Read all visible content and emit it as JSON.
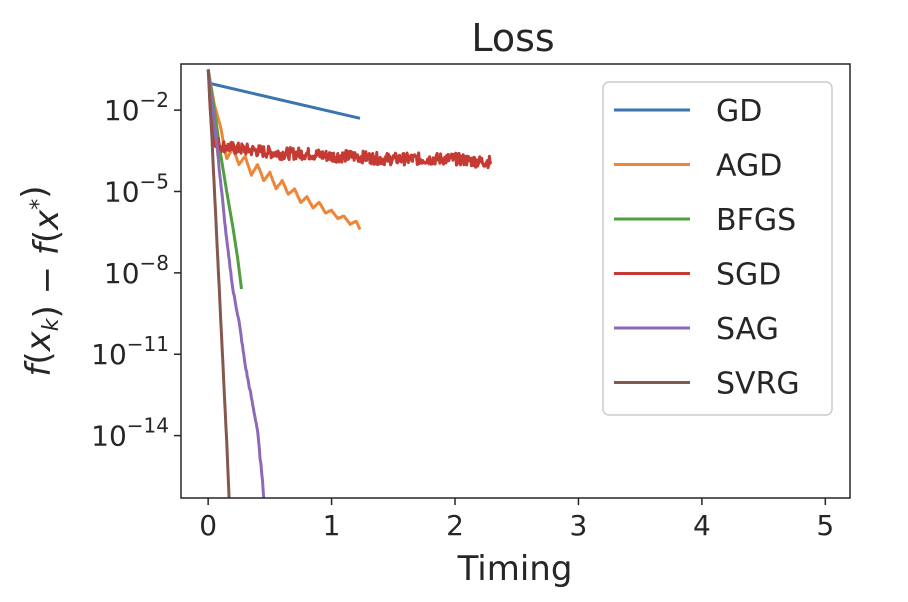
{
  "chart_data": {
    "type": "line",
    "title": "Loss",
    "xlabel": "Timing",
    "ylabel": "f(x_k) − f(x*)",
    "y_scale": "log",
    "xlim": [
      -0.22,
      5.2
    ],
    "ylim_log10": [
      -16.3,
      -0.3
    ],
    "x_ticks": [
      "0",
      "1",
      "2",
      "3",
      "4",
      "5"
    ],
    "y_ticks": [
      {
        "base": "10",
        "exp": "−2"
      },
      {
        "base": "10",
        "exp": "−5"
      },
      {
        "base": "10",
        "exp": "−8"
      },
      {
        "base": "10",
        "exp": "−11"
      },
      {
        "base": "10",
        "exp": "−14"
      }
    ],
    "grid": false,
    "legend_position": "top-right",
    "series": [
      {
        "name": "GD",
        "color": "#3a75b0",
        "x": [
          0.0,
          1.23
        ],
        "log10_y": [
          -1.0,
          -2.3
        ]
      },
      {
        "name": "AGD",
        "color": "#ef8536",
        "x": [
          0.0,
          0.05,
          0.1,
          0.15,
          0.2,
          0.25,
          0.3,
          0.35,
          0.4,
          0.45,
          0.5,
          0.55,
          0.6,
          0.65,
          0.7,
          0.75,
          0.8,
          0.85,
          0.9,
          0.95,
          1.0,
          1.05,
          1.1,
          1.15,
          1.2,
          1.23
        ],
        "log10_y": [
          -0.5,
          -1.8,
          -2.6,
          -3.8,
          -3.4,
          -4.0,
          -3.7,
          -4.4,
          -4.0,
          -4.6,
          -4.3,
          -4.9,
          -4.6,
          -5.1,
          -4.9,
          -5.4,
          -5.2,
          -5.6,
          -5.4,
          -5.8,
          -5.7,
          -6.0,
          -5.9,
          -6.2,
          -6.1,
          -6.4
        ]
      },
      {
        "name": "BFGS",
        "color": "#519e3e",
        "x": [
          0.0,
          0.03,
          0.06,
          0.1,
          0.15,
          0.2,
          0.24,
          0.27
        ],
        "log10_y": [
          -0.5,
          -1.4,
          -2.3,
          -3.6,
          -5.0,
          -6.3,
          -7.5,
          -8.6
        ]
      },
      {
        "name": "SGD",
        "color": "#c53a32",
        "x": [
          0.0,
          0.02,
          0.05,
          0.1,
          0.2,
          0.4,
          0.6,
          0.8,
          1.0,
          1.2,
          1.4,
          1.6,
          1.8,
          2.0,
          2.2,
          2.29
        ],
        "log10_y": [
          -0.5,
          -2.0,
          -3.1,
          -3.3,
          -3.4,
          -3.5,
          -3.6,
          -3.6,
          -3.7,
          -3.7,
          -3.8,
          -3.8,
          -3.8,
          -3.8,
          -3.9,
          -3.9
        ]
      },
      {
        "name": "SAG",
        "color": "#8d6ab8",
        "x": [
          0.0,
          0.05,
          0.1,
          0.15,
          0.2,
          0.25,
          0.3,
          0.35,
          0.4,
          0.42,
          0.44,
          0.45
        ],
        "log10_y": [
          -0.5,
          -2.4,
          -4.6,
          -6.8,
          -8.6,
          -9.8,
          -11.4,
          -12.6,
          -13.8,
          -14.8,
          -15.6,
          -16.3
        ]
      },
      {
        "name": "SVRG",
        "color": "#84584d",
        "x": [
          0.0,
          0.03,
          0.06,
          0.09,
          0.12,
          0.15,
          0.17
        ],
        "log10_y": [
          -0.5,
          -3.0,
          -5.8,
          -8.6,
          -11.4,
          -14.2,
          -16.3
        ]
      }
    ]
  }
}
